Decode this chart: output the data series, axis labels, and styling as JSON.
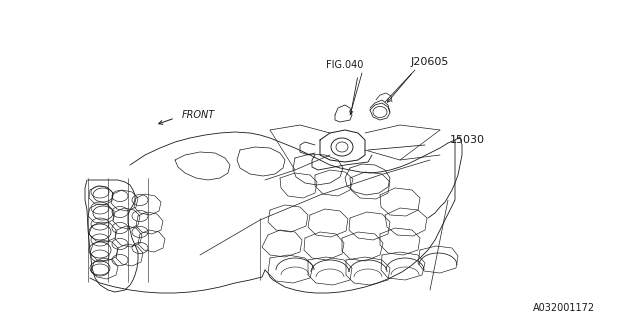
{
  "bg_color": "#ffffff",
  "line_color": "#1a1a1a",
  "text_color": "#1a1a1a",
  "fig_width": 6.4,
  "fig_height": 3.2,
  "dpi": 100,
  "label_fig040": "FIG.040",
  "label_j20605": "J20605",
  "label_15030": "15030",
  "label_front": "FRONT",
  "label_partnum": "A032001172",
  "font_size_labels": 7,
  "font_size_partnum": 7,
  "font_family": "DejaVu Sans"
}
